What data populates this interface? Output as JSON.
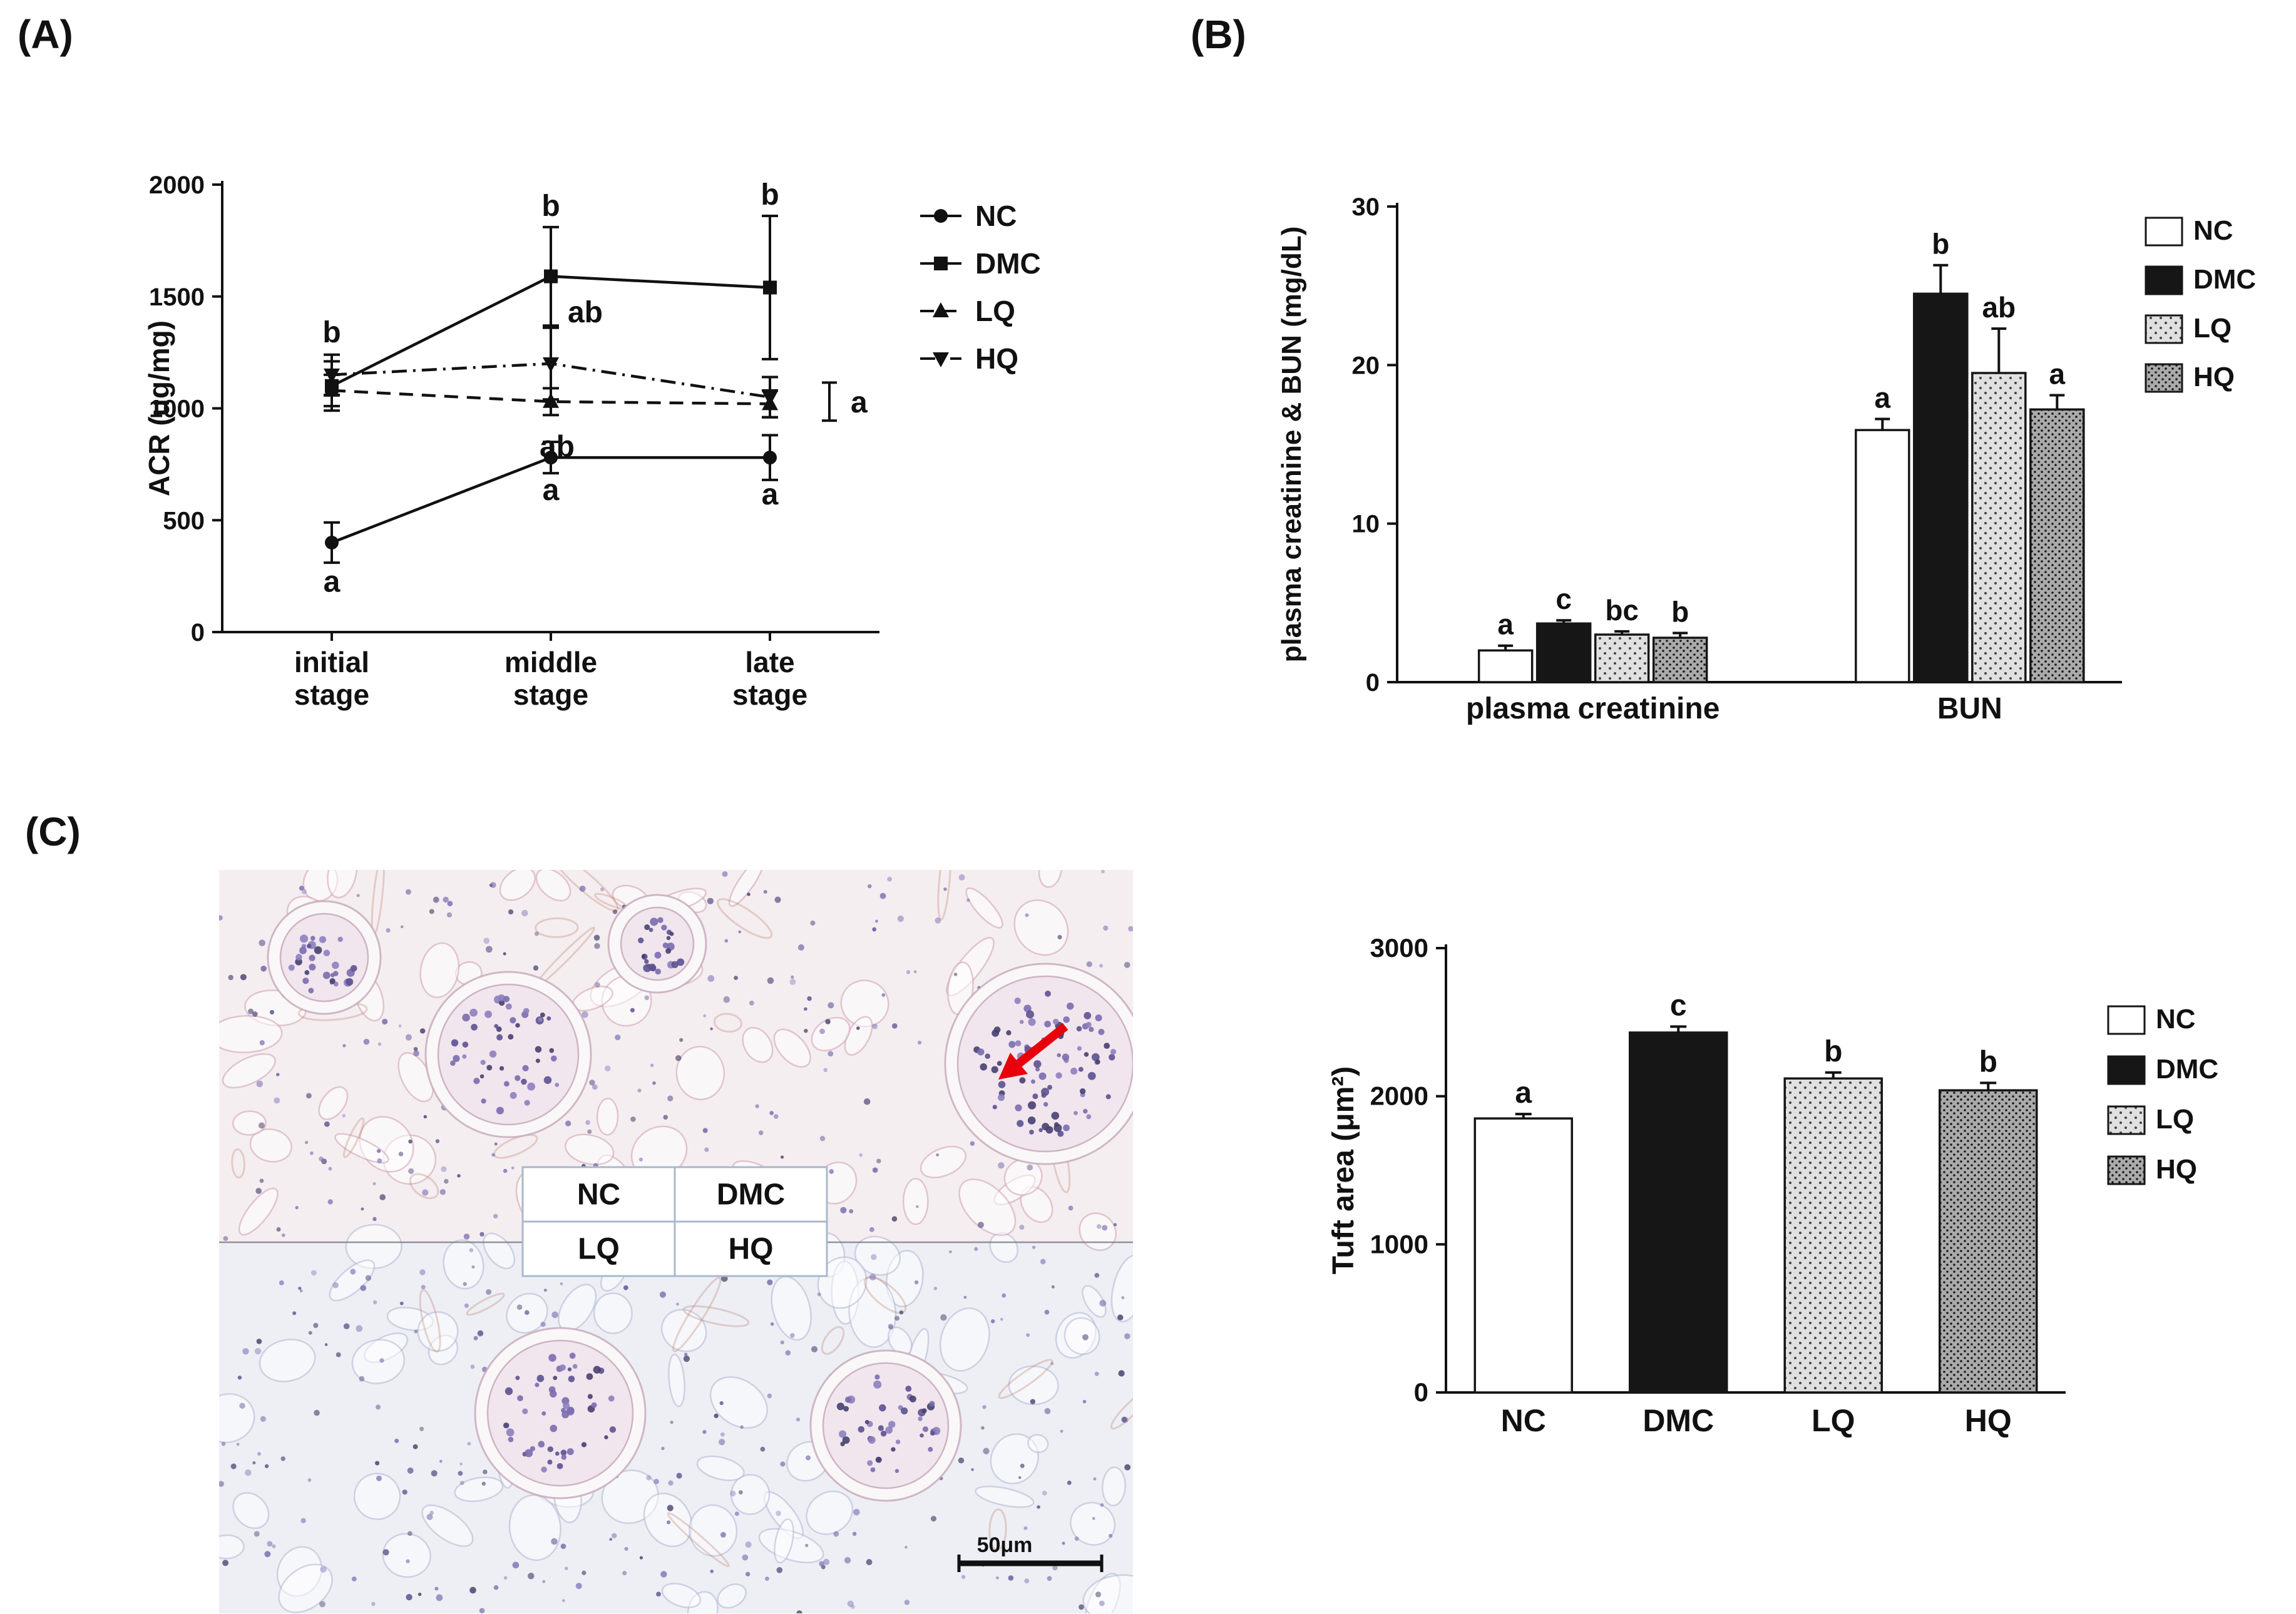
{
  "panels": {
    "a": "(A)",
    "b": "(B)",
    "c": "(C)"
  },
  "chart_data": [
    {
      "id": "acr",
      "type": "line",
      "title": "",
      "xlabel": "",
      "ylabel": "ACR (ug/mg)",
      "ylim": [
        0,
        2000
      ],
      "yticks": [
        0,
        500,
        1000,
        1500,
        2000
      ],
      "categories": [
        "initial stage",
        "middle stage",
        "late stage"
      ],
      "legend_position": "right",
      "series": [
        {
          "name": "NC",
          "marker": "circle",
          "line": "solid",
          "values": [
            400,
            780,
            780
          ],
          "errors": [
            90,
            70,
            100
          ]
        },
        {
          "name": "DMC",
          "marker": "square",
          "line": "solid",
          "values": [
            1100,
            1590,
            1540
          ],
          "errors": [
            110,
            220,
            320
          ]
        },
        {
          "name": "LQ",
          "marker": "triangle-up",
          "line": "dashed",
          "values": [
            1080,
            1030,
            1020
          ],
          "errors": [
            70,
            60,
            60
          ]
        },
        {
          "name": "HQ",
          "marker": "triangle-down",
          "line": "dashdot",
          "values": [
            1150,
            1200,
            1050
          ],
          "errors": [
            90,
            160,
            90
          ]
        }
      ],
      "annotations": [
        {
          "category": 0,
          "y": 1340,
          "dx": 0,
          "text": "b"
        },
        {
          "category": 0,
          "y": 225,
          "dx": 0,
          "text": "a"
        },
        {
          "category": 1,
          "y": 1905,
          "dx": 0,
          "text": "b"
        },
        {
          "category": 1,
          "y": 1430,
          "dx": 55,
          "text": "ab"
        },
        {
          "category": 1,
          "y": 830,
          "dx": 10,
          "text": "ab"
        },
        {
          "category": 1,
          "y": 635,
          "dx": 0,
          "text": "a"
        },
        {
          "category": 2,
          "y": 1955,
          "dx": 0,
          "text": "b"
        },
        {
          "category": 2,
          "y": 615,
          "dx": 0,
          "text": "a"
        }
      ],
      "right_bracket": {
        "y": 1030,
        "err": 85,
        "text": "a"
      }
    },
    {
      "id": "creat_bun",
      "type": "bar",
      "grouped": true,
      "title": "",
      "xlabel": "",
      "ylabel": "plasma creatinine & BUN (mg/dL)",
      "ylim": [
        0,
        30
      ],
      "yticks": [
        0,
        10,
        20,
        30
      ],
      "categories": [
        "plasma creatinine",
        "BUN"
      ],
      "series": [
        {
          "name": "NC",
          "fill": "white",
          "values": [
            2.0,
            15.9
          ],
          "errors": [
            0.3,
            0.7
          ],
          "letters": [
            "a",
            "a"
          ]
        },
        {
          "name": "DMC",
          "fill": "black",
          "values": [
            3.7,
            24.5
          ],
          "errors": [
            0.2,
            1.8
          ],
          "letters": [
            "c",
            "b"
          ]
        },
        {
          "name": "LQ",
          "fill": "dots-light",
          "values": [
            3.0,
            19.5
          ],
          "errors": [
            0.2,
            2.8
          ],
          "letters": [
            "bc",
            "ab"
          ]
        },
        {
          "name": "HQ",
          "fill": "dots-dark",
          "values": [
            2.8,
            17.2
          ],
          "errors": [
            0.3,
            0.9
          ],
          "letters": [
            "b",
            "a"
          ]
        }
      ],
      "legend": [
        {
          "label": "NC",
          "fill": "white"
        },
        {
          "label": "DMC",
          "fill": "black"
        },
        {
          "label": "LQ",
          "fill": "dots-light"
        },
        {
          "label": "HQ",
          "fill": "dots-dark"
        }
      ]
    },
    {
      "id": "tuft",
      "type": "bar",
      "grouped": false,
      "title": "",
      "xlabel": "",
      "ylabel": "Tuft area (μm²)",
      "ylim": [
        0,
        3000
      ],
      "yticks": [
        0,
        1000,
        2000,
        3000
      ],
      "categories": [
        "NC",
        "DMC",
        "LQ",
        "HQ"
      ],
      "values": [
        1850,
        2430,
        2120,
        2040
      ],
      "errors": [
        30,
        40,
        40,
        50
      ],
      "letters": [
        "a",
        "c",
        "b",
        "b"
      ],
      "fills": [
        "white",
        "black",
        "dots-light",
        "dots-dark"
      ],
      "legend": [
        {
          "label": "NC",
          "fill": "white"
        },
        {
          "label": "DMC",
          "fill": "black"
        },
        {
          "label": "LQ",
          "fill": "dots-light"
        },
        {
          "label": "HQ",
          "fill": "dots-dark"
        }
      ]
    }
  ],
  "histology": {
    "overlay_labels": [
      [
        "NC",
        "DMC"
      ],
      [
        "LQ",
        "HQ"
      ]
    ],
    "scale_bar_label": "50μm",
    "arrow_color": "#e8000b"
  }
}
